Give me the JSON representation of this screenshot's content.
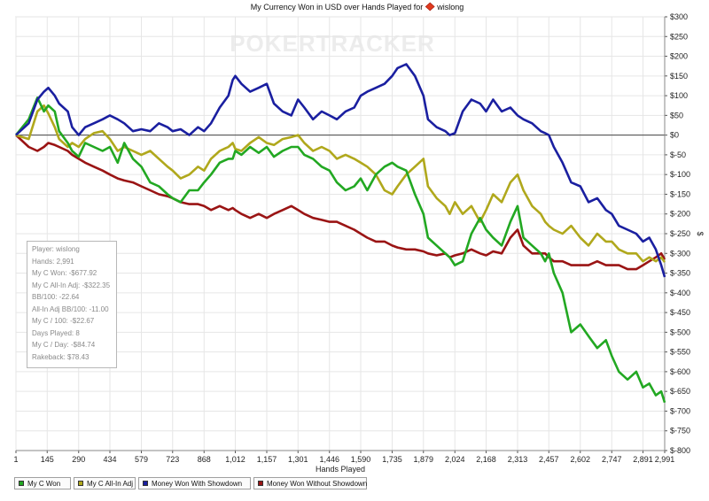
{
  "chart_data": {
    "type": "line",
    "title": "My Currency Won in USD over Hands Played for",
    "player_name": "wislong",
    "site_icon": "diamond-icon",
    "watermark": "POKERTRACKER",
    "xlabel": "Hands Played",
    "ylabel": "$",
    "xlim": [
      1,
      2991
    ],
    "ylim": [
      -800,
      300
    ],
    "grid": true,
    "x_ticks": [
      "1",
      "145",
      "290",
      "434",
      "579",
      "723",
      "868",
      "1,012",
      "1,157",
      "1,301",
      "1,446",
      "1,590",
      "1,735",
      "1,879",
      "2,024",
      "2,168",
      "2,313",
      "2,457",
      "2,602",
      "2,747",
      "2,891",
      "2,991"
    ],
    "x_tick_values": [
      1,
      145,
      290,
      434,
      579,
      723,
      868,
      1012,
      1157,
      1301,
      1446,
      1590,
      1735,
      1879,
      2024,
      2168,
      2313,
      2457,
      2602,
      2747,
      2891,
      2991
    ],
    "y_ticks": [
      "$300",
      "$250",
      "$200",
      "$150",
      "$100",
      "$50",
      "$0",
      "$-50",
      "$-100",
      "$-150",
      "$-200",
      "$-250",
      "$-300",
      "$-350",
      "$-400",
      "$-450",
      "$-500",
      "$-550",
      "$-600",
      "$-650",
      "$-700",
      "$-750",
      "$-800"
    ],
    "y_tick_values": [
      300,
      250,
      200,
      150,
      100,
      50,
      0,
      -50,
      -100,
      -150,
      -200,
      -250,
      -300,
      -350,
      -400,
      -450,
      -500,
      -550,
      -600,
      -650,
      -700,
      -750,
      -800
    ],
    "series": [
      {
        "name": "My C Won",
        "color": "#22a822",
        "x": [
          1,
          60,
          100,
          130,
          150,
          180,
          200,
          240,
          260,
          290,
          320,
          360,
          400,
          434,
          470,
          500,
          540,
          579,
          620,
          660,
          700,
          723,
          760,
          800,
          840,
          868,
          900,
          940,
          980,
          1000,
          1012,
          1040,
          1080,
          1120,
          1157,
          1190,
          1230,
          1270,
          1301,
          1330,
          1370,
          1410,
          1446,
          1480,
          1520,
          1560,
          1590,
          1620,
          1660,
          1700,
          1735,
          1760,
          1800,
          1840,
          1879,
          1900,
          1940,
          1980,
          2000,
          2024,
          2060,
          2100,
          2140,
          2168,
          2200,
          2240,
          2280,
          2313,
          2340,
          2380,
          2420,
          2440,
          2457,
          2480,
          2520,
          2560,
          2602,
          2640,
          2680,
          2720,
          2747,
          2780,
          2820,
          2860,
          2891,
          2920,
          2950,
          2975,
          2991
        ],
        "y": [
          0,
          40,
          95,
          60,
          75,
          60,
          10,
          -20,
          -40,
          -55,
          -20,
          -30,
          -40,
          -30,
          -70,
          -20,
          -60,
          -80,
          -120,
          -130,
          -150,
          -160,
          -170,
          -140,
          -140,
          -120,
          -100,
          -70,
          -60,
          -60,
          -40,
          -50,
          -30,
          -45,
          -30,
          -55,
          -40,
          -30,
          -30,
          -50,
          -60,
          -80,
          -90,
          -120,
          -140,
          -130,
          -110,
          -140,
          -100,
          -80,
          -70,
          -80,
          -90,
          -150,
          -200,
          -260,
          -280,
          -300,
          -310,
          -330,
          -320,
          -250,
          -210,
          -240,
          -260,
          -280,
          -220,
          -180,
          -260,
          -280,
          -300,
          -320,
          -300,
          -350,
          -400,
          -500,
          -480,
          -510,
          -540,
          -520,
          -560,
          -600,
          -620,
          -600,
          -640,
          -630,
          -660,
          -650,
          -678
        ]
      },
      {
        "name": "My C All-In Adj",
        "color": "#b0a81c",
        "x": [
          1,
          60,
          100,
          130,
          150,
          180,
          200,
          240,
          260,
          290,
          320,
          360,
          400,
          434,
          470,
          500,
          540,
          579,
          620,
          660,
          700,
          723,
          760,
          800,
          840,
          868,
          900,
          940,
          980,
          1000,
          1012,
          1040,
          1080,
          1120,
          1157,
          1190,
          1230,
          1270,
          1301,
          1330,
          1370,
          1410,
          1446,
          1480,
          1520,
          1560,
          1590,
          1620,
          1660,
          1700,
          1735,
          1760,
          1800,
          1840,
          1879,
          1900,
          1940,
          1980,
          2000,
          2024,
          2060,
          2100,
          2140,
          2168,
          2200,
          2240,
          2280,
          2313,
          2340,
          2380,
          2420,
          2440,
          2457,
          2480,
          2520,
          2560,
          2602,
          2640,
          2680,
          2720,
          2747,
          2780,
          2820,
          2860,
          2891,
          2920,
          2950,
          2975,
          2991
        ],
        "y": [
          0,
          -10,
          60,
          75,
          55,
          20,
          -10,
          -30,
          -20,
          -30,
          -10,
          5,
          10,
          -10,
          -40,
          -30,
          -40,
          -50,
          -40,
          -60,
          -80,
          -90,
          -110,
          -100,
          -80,
          -90,
          -60,
          -40,
          -30,
          -20,
          -35,
          -40,
          -20,
          -5,
          -20,
          -25,
          -10,
          -5,
          0,
          -20,
          -40,
          -30,
          -40,
          -60,
          -50,
          -60,
          -70,
          -80,
          -100,
          -140,
          -150,
          -130,
          -100,
          -80,
          -60,
          -130,
          -160,
          -180,
          -200,
          -170,
          -200,
          -180,
          -220,
          -190,
          -150,
          -170,
          -120,
          -100,
          -140,
          -180,
          -200,
          -220,
          -230,
          -240,
          -250,
          -230,
          -260,
          -280,
          -250,
          -270,
          -270,
          -290,
          -300,
          -300,
          -320,
          -310,
          -320,
          -310,
          -322
        ]
      },
      {
        "name": "Money Won With Showdown",
        "color": "#1a1fa0",
        "x": [
          1,
          60,
          100,
          130,
          150,
          180,
          200,
          240,
          260,
          290,
          320,
          360,
          400,
          434,
          470,
          500,
          540,
          579,
          620,
          660,
          700,
          723,
          760,
          800,
          840,
          868,
          900,
          940,
          980,
          1000,
          1012,
          1040,
          1080,
          1120,
          1157,
          1190,
          1230,
          1270,
          1301,
          1330,
          1370,
          1410,
          1446,
          1480,
          1520,
          1560,
          1590,
          1620,
          1660,
          1700,
          1735,
          1760,
          1800,
          1840,
          1879,
          1900,
          1940,
          1980,
          2000,
          2024,
          2060,
          2100,
          2140,
          2168,
          2200,
          2240,
          2280,
          2313,
          2340,
          2380,
          2420,
          2440,
          2457,
          2480,
          2520,
          2560,
          2602,
          2640,
          2680,
          2720,
          2747,
          2780,
          2820,
          2860,
          2891,
          2920,
          2950,
          2975,
          2991
        ],
        "y": [
          0,
          30,
          90,
          110,
          120,
          100,
          80,
          60,
          20,
          0,
          20,
          30,
          40,
          50,
          40,
          30,
          10,
          15,
          10,
          30,
          20,
          10,
          15,
          0,
          20,
          10,
          30,
          70,
          100,
          140,
          150,
          130,
          110,
          120,
          130,
          80,
          60,
          50,
          90,
          70,
          40,
          60,
          50,
          40,
          60,
          70,
          100,
          110,
          120,
          130,
          150,
          170,
          180,
          150,
          100,
          40,
          20,
          10,
          0,
          5,
          60,
          90,
          80,
          60,
          90,
          60,
          70,
          50,
          40,
          30,
          10,
          5,
          0,
          -30,
          -70,
          -120,
          -130,
          -170,
          -160,
          -190,
          -200,
          -230,
          -240,
          -250,
          -270,
          -260,
          -290,
          -330,
          -360
        ]
      },
      {
        "name": "Money Won Without Showdown",
        "color": "#9a1414",
        "x": [
          1,
          60,
          100,
          130,
          150,
          180,
          200,
          240,
          260,
          290,
          320,
          360,
          400,
          434,
          470,
          500,
          540,
          579,
          620,
          660,
          700,
          723,
          760,
          800,
          840,
          868,
          900,
          940,
          980,
          1000,
          1012,
          1040,
          1080,
          1120,
          1157,
          1190,
          1230,
          1270,
          1301,
          1330,
          1370,
          1410,
          1446,
          1480,
          1520,
          1560,
          1590,
          1620,
          1660,
          1700,
          1735,
          1760,
          1800,
          1840,
          1879,
          1900,
          1940,
          1980,
          2000,
          2024,
          2060,
          2100,
          2140,
          2168,
          2200,
          2240,
          2280,
          2313,
          2340,
          2380,
          2420,
          2440,
          2457,
          2480,
          2520,
          2560,
          2602,
          2640,
          2680,
          2720,
          2747,
          2780,
          2820,
          2860,
          2891,
          2920,
          2950,
          2975,
          2991
        ],
        "y": [
          0,
          -30,
          -40,
          -30,
          -20,
          -25,
          -30,
          -40,
          -50,
          -60,
          -70,
          -80,
          -90,
          -100,
          -110,
          -115,
          -120,
          -130,
          -140,
          -150,
          -155,
          -160,
          -170,
          -175,
          -175,
          -180,
          -190,
          -180,
          -190,
          -185,
          -190,
          -200,
          -210,
          -200,
          -210,
          -200,
          -190,
          -180,
          -190,
          -200,
          -210,
          -215,
          -220,
          -220,
          -230,
          -240,
          -250,
          -260,
          -270,
          -270,
          -280,
          -285,
          -290,
          -290,
          -295,
          -300,
          -305,
          -300,
          -310,
          -305,
          -300,
          -290,
          -300,
          -305,
          -295,
          -300,
          -260,
          -240,
          -280,
          -300,
          -300,
          -300,
          -310,
          -320,
          -320,
          -330,
          -330,
          -330,
          -320,
          -330,
          -330,
          -330,
          -340,
          -340,
          -330,
          -320,
          -310,
          -300,
          -315
        ]
      }
    ],
    "legend_placement": "bottom-left"
  },
  "stats": {
    "lines": [
      "Player: wislong",
      "Hands: 2,991",
      "My C Won: -$677.92",
      "My C All-In Adj: -$322.35",
      "BB/100: -22.64",
      "All-In Adj BB/100: -11.00",
      "My C / 100: -$22.67",
      "Days Played: 8",
      "My C / Day: -$84.74",
      "Rakeback: $78.43"
    ]
  }
}
